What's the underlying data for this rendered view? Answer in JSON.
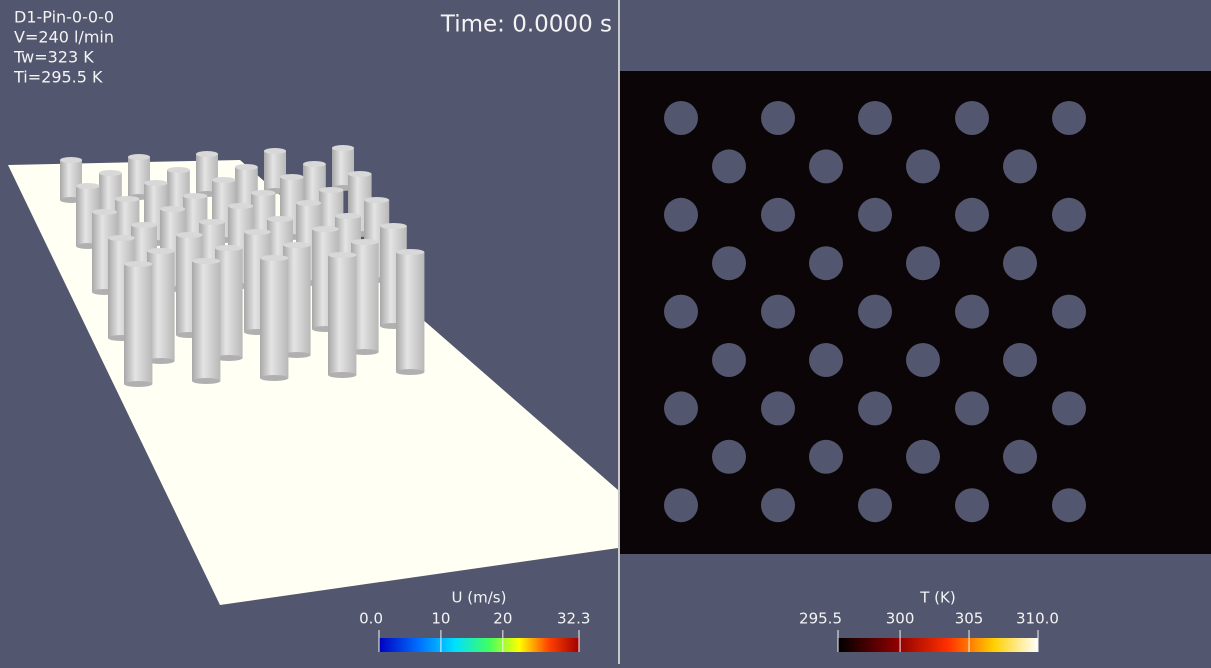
{
  "left_view": {
    "info": [
      "D1-Pin-0-0-0",
      "V=240 l/min",
      "Tw=323 K",
      "Ti=295.5 K"
    ],
    "time": "Time: 0.0000 s",
    "colorbar": {
      "title": "U (m/s)",
      "ticks": [
        {
          "value": 0,
          "label": "0.0"
        },
        10,
        20,
        32.3
      ]
    }
  },
  "right_view": {
    "colorbar": {
      "title": "T (K)",
      "ticks": [
        295.5,
        300,
        305,
        {
          "value": 310,
          "label": "310.0"
        }
      ]
    }
  }
}
